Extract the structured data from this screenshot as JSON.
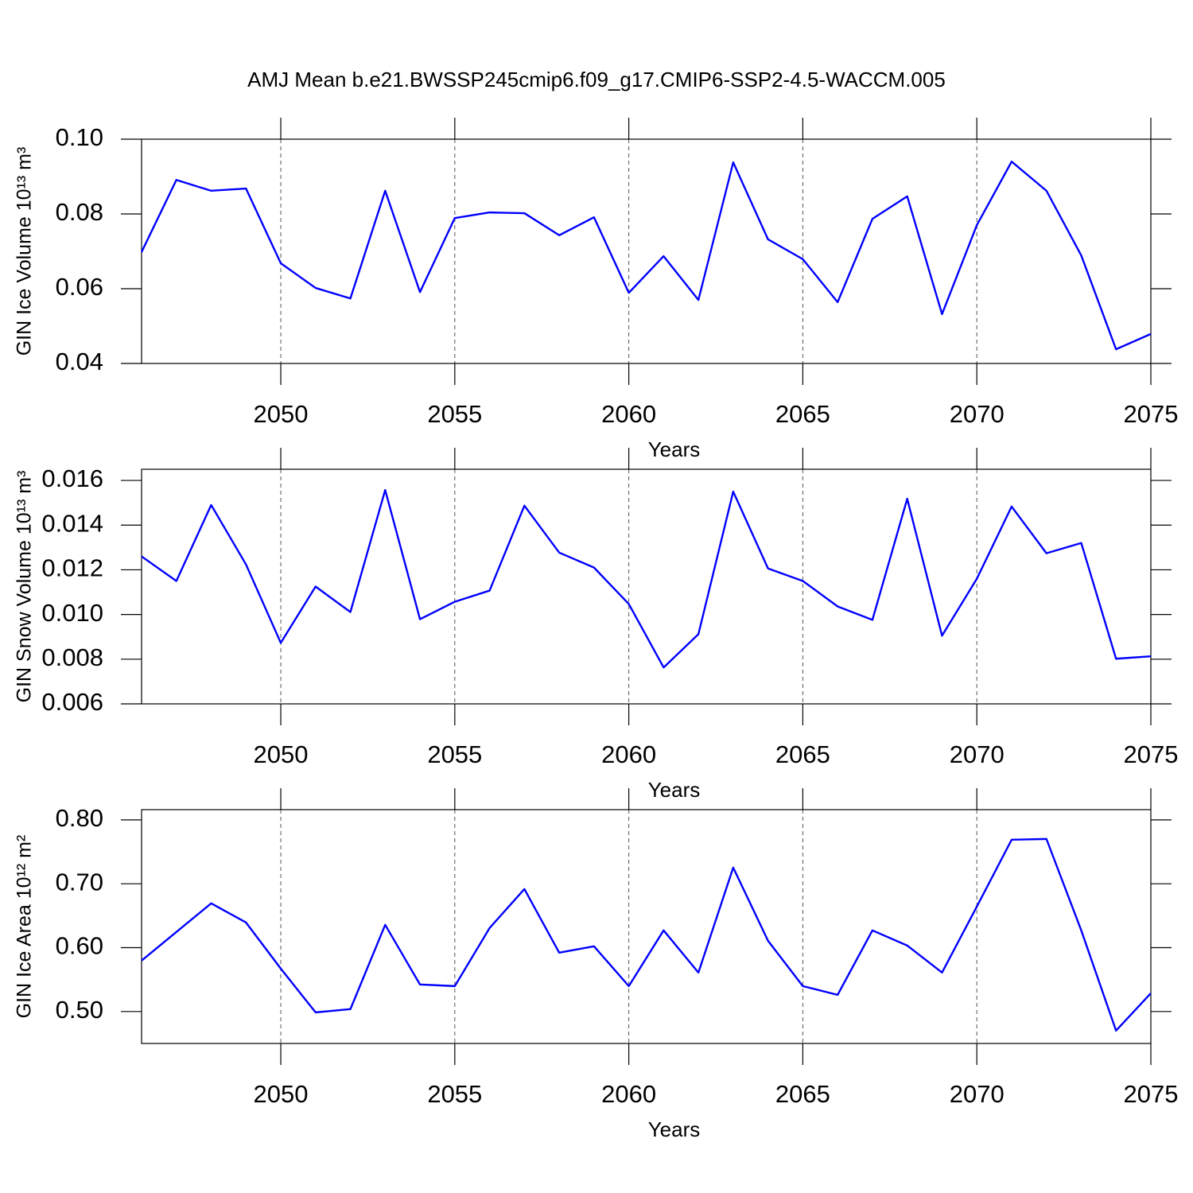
{
  "title": "AMJ Mean b.e21.BWSSP245cmip6.f09_g17.CMIP6-SSP2-4.5-WACCM.005",
  "chart_data": [
    {
      "type": "line",
      "ylabel": "GIN Ice Volume 10¹³ m³",
      "xlabel": "Years",
      "x": [
        2046,
        2047,
        2048,
        2049,
        2050,
        2051,
        2052,
        2053,
        2054,
        2055,
        2056,
        2057,
        2058,
        2059,
        2060,
        2061,
        2062,
        2063,
        2064,
        2065,
        2066,
        2067,
        2068,
        2069,
        2070,
        2071,
        2072,
        2073,
        2074,
        2075
      ],
      "values": [
        0.0698,
        0.0891,
        0.0862,
        0.0868,
        0.0668,
        0.0602,
        0.0574,
        0.0862,
        0.0591,
        0.0789,
        0.0804,
        0.0802,
        0.0743,
        0.0791,
        0.0589,
        0.0687,
        0.057,
        0.0938,
        0.0732,
        0.0679,
        0.0564,
        0.0787,
        0.0847,
        0.0532,
        0.077,
        0.094,
        0.0862,
        0.0689,
        0.0438,
        0.0479
      ],
      "color": "#0000ff",
      "xlim": [
        2046,
        2075
      ],
      "xticks": [
        2050,
        2055,
        2060,
        2065,
        2070,
        2075
      ],
      "ylim": [
        0.04,
        0.1
      ],
      "yticks": [
        {
          "value": 0.1,
          "label": "0.10"
        },
        0.08,
        0.06,
        0.04
      ],
      "grid": true
    },
    {
      "type": "line",
      "ylabel": "GIN Snow Volume 10¹³ m³",
      "xlabel": "Years",
      "x": [
        2046,
        2047,
        2048,
        2049,
        2050,
        2051,
        2052,
        2053,
        2054,
        2055,
        2056,
        2057,
        2058,
        2059,
        2060,
        2061,
        2062,
        2063,
        2064,
        2065,
        2066,
        2067,
        2068,
        2069,
        2070,
        2071,
        2072,
        2073,
        2074,
        2075
      ],
      "values": [
        0.0126,
        0.0115,
        0.0149,
        0.01224,
        0.00873,
        0.01125,
        0.01011,
        0.01557,
        0.00979,
        0.01057,
        0.01107,
        0.01487,
        0.01277,
        0.0121,
        0.01047,
        0.00763,
        0.00912,
        0.0155,
        0.01206,
        0.0115,
        0.01036,
        0.00976,
        0.01518,
        0.00905,
        0.0116,
        0.01483,
        0.01274,
        0.0132,
        0.00802,
        0.00813
      ],
      "color": "#0000ff",
      "xlim": [
        2046,
        2075
      ],
      "xticks": [
        2050,
        2055,
        2060,
        2065,
        2070,
        2075
      ],
      "ylim": [
        0.006,
        0.0165
      ],
      "yticks": [
        0.016,
        0.014,
        0.012,
        {
          "value": 0.01,
          "label": "0.010"
        },
        0.008,
        0.006
      ],
      "grid": true
    },
    {
      "type": "line",
      "ylabel": "GIN Ice Area 10¹² m²",
      "xlabel": "Years",
      "x": [
        2046,
        2047,
        2048,
        2049,
        2050,
        2051,
        2052,
        2053,
        2054,
        2055,
        2056,
        2057,
        2058,
        2059,
        2060,
        2061,
        2062,
        2063,
        2064,
        2065,
        2066,
        2067,
        2068,
        2069,
        2070,
        2071,
        2072,
        2073,
        2074,
        2075
      ],
      "values": [
        0.5797,
        0.6245,
        0.6693,
        0.6394,
        0.5672,
        0.4987,
        0.5037,
        0.6357,
        0.5423,
        0.5398,
        0.6307,
        0.6917,
        0.5921,
        0.6021,
        0.5398,
        0.627,
        0.561,
        0.7253,
        0.6108,
        0.5398,
        0.5261,
        0.627,
        0.6033,
        0.561,
        0.6643,
        0.7689,
        0.7701,
        0.627,
        0.4701,
        0.5286
      ],
      "color": "#0000ff",
      "xlim": [
        2046,
        2075
      ],
      "xticks": [
        2050,
        2055,
        2060,
        2065,
        2070,
        2075
      ],
      "ylim": [
        0.45,
        0.816
      ],
      "yticks": [
        {
          "value": 0.8,
          "label": "0.80"
        },
        {
          "value": 0.7,
          "label": "0.70"
        },
        {
          "value": 0.6,
          "label": "0.60"
        },
        {
          "value": 0.5,
          "label": "0.50"
        }
      ],
      "grid": true
    }
  ]
}
